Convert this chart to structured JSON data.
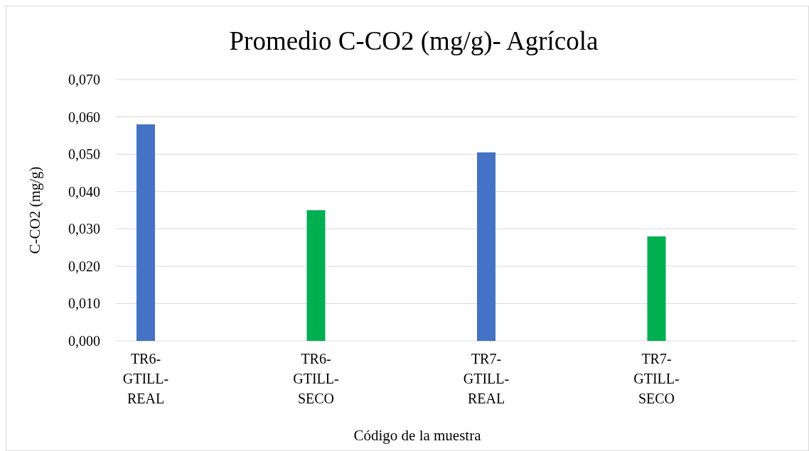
{
  "chart_data": {
    "type": "bar",
    "title": "Promedio C-CO2 (mg/g)- Agrícola",
    "xlabel": "Código de la muestra",
    "ylabel": "C-CO2 (mg/g)",
    "categories": [
      "TR6-GTILL-REAL",
      "TR6-GTILL-SECO",
      "TR7-GTILL-REAL",
      "TR7-GTILL-SECO"
    ],
    "values": [
      0.058,
      0.035,
      0.0505,
      0.028
    ],
    "colors": [
      "#4472c4",
      "#00b050",
      "#4472c4",
      "#00b050"
    ],
    "ylim": [
      0,
      0.07
    ],
    "yticks": [
      {
        "value": 0,
        "label": "0,000"
      },
      {
        "value": 0.01,
        "label": "0,010"
      },
      {
        "value": 0.02,
        "label": "0,020"
      },
      {
        "value": 0.03,
        "label": "0,030"
      },
      {
        "value": 0.04,
        "label": "0,040"
      },
      {
        "value": 0.05,
        "label": "0,050"
      },
      {
        "value": 0.06,
        "label": "0,060"
      },
      {
        "value": 0.07,
        "label": "0,070"
      }
    ],
    "grid": "y"
  }
}
